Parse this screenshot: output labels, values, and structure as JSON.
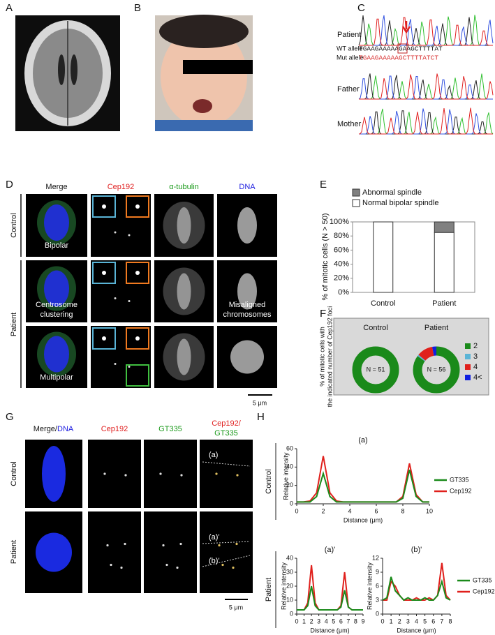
{
  "figure": {
    "panel_letters": [
      "A",
      "B",
      "C",
      "D",
      "E",
      "F",
      "G",
      "H"
    ]
  },
  "panel_c": {
    "patient": "Patient",
    "wt_allele_label": "WT allele",
    "wt_seq": "TGAAGAAAAAGAAGCTTTTAT",
    "mut_allele_label": "Mut allele",
    "mut_seq": "TGAAGAAAAAGCTTTTATCT",
    "father": "Father",
    "mother": "Mother"
  },
  "panel_d": {
    "columns": [
      "Merge",
      "Cep192",
      "α-tubulin",
      "DNA"
    ],
    "rows": [
      "Control",
      "Patient"
    ],
    "cell_labels": [
      "Bipolar",
      "Centrosome",
      "clustering",
      "Misaligned",
      "chromosomes",
      "Multipolar"
    ],
    "scale_bar": "5 μm"
  },
  "panel_g": {
    "columns": [
      "Merge/",
      "DNA",
      "Cep192",
      "GT335",
      "Cep192/",
      "GT335"
    ],
    "rows": [
      "Control",
      "Patient"
    ],
    "line_labels": [
      "(a)",
      "(a)'",
      "(b)'"
    ],
    "scale_bar": "5 μm"
  },
  "chart_data": [
    {
      "type": "bar",
      "stacked": true,
      "y_label": "% of mitotic cells (N > 50)",
      "categories": [
        "Control",
        "Patient"
      ],
      "series": [
        {
          "name": "Normal bipolar spindle",
          "color": "#ffffff",
          "values": [
            100,
            85
          ]
        },
        {
          "name": "Abnormal spindle",
          "color": "#808080",
          "values": [
            0,
            15
          ]
        }
      ],
      "ylim": [
        0,
        100
      ],
      "yticks": [
        {
          "value": 0,
          "label": "0%"
        },
        {
          "value": 20,
          "label": "20%"
        },
        {
          "value": 40,
          "label": "40%"
        },
        {
          "value": 60,
          "label": "60%"
        },
        {
          "value": 80,
          "label": "80%"
        },
        {
          "value": 100,
          "label": "100%"
        }
      ]
    },
    {
      "type": "donut",
      "y_label": [
        "% of mitotic cells with",
        "the indicated number of Cep192 foci"
      ],
      "categories": [
        "2",
        "3",
        "4",
        "4<"
      ],
      "colors": [
        "#1a8a1a",
        "#5ab4d6",
        "#e0201c",
        "#1020e0"
      ],
      "pies": [
        {
          "title": "Control",
          "center_label": "N = 51",
          "values": [
            100,
            0,
            0,
            0
          ]
        },
        {
          "title": "Patient",
          "center_label": "N = 56",
          "values": [
            85,
            1,
            11,
            3
          ]
        }
      ]
    },
    {
      "type": "line",
      "row_label": "Control",
      "title": "(a)",
      "x_label": "Distance (μm)",
      "y_label": "Relative intensity",
      "x": [
        0,
        0.5,
        1,
        1.5,
        2,
        2.5,
        3,
        3.5,
        4,
        4.5,
        5,
        5.5,
        6,
        6.5,
        7,
        7.5,
        8,
        8.5,
        9,
        9.5,
        10
      ],
      "series": [
        {
          "name": "GT335",
          "color": "#1a8a1a",
          "values": [
            2,
            2,
            2,
            8,
            33,
            8,
            2,
            2,
            2,
            2,
            2,
            2,
            2,
            2,
            2,
            2,
            6,
            37,
            8,
            2,
            2
          ]
        },
        {
          "name": "Cep192",
          "color": "#e0201c",
          "values": [
            2,
            2,
            3,
            12,
            52,
            12,
            3,
            2,
            2,
            2,
            2,
            2,
            2,
            2,
            2,
            2,
            8,
            44,
            10,
            2,
            2
          ]
        }
      ],
      "xlim": [
        0,
        10
      ],
      "ylim": [
        0,
        60
      ],
      "xticks": [
        0,
        2,
        4,
        6,
        8,
        10
      ],
      "yticks": [
        0,
        20,
        40,
        60
      ],
      "legend": true
    },
    {
      "type": "line",
      "row_label": "Patient",
      "title": "(a)'",
      "x_label": "Distance (μm)",
      "y_label": "Relative intensity",
      "x": [
        0,
        0.5,
        1,
        1.5,
        2,
        2.5,
        3,
        3.5,
        4,
        4.5,
        5,
        5.5,
        6,
        6.5,
        7,
        7.5,
        8,
        8.5,
        9
      ],
      "series": [
        {
          "name": "GT335",
          "color": "#1a8a1a",
          "values": [
            3,
            3,
            3,
            6,
            20,
            6,
            3,
            3,
            3,
            3,
            3,
            3,
            5,
            17,
            5,
            3,
            3,
            3,
            3
          ]
        },
        {
          "name": "Cep192",
          "color": "#e0201c",
          "values": [
            3,
            3,
            3,
            8,
            35,
            8,
            3,
            3,
            3,
            3,
            3,
            3,
            6,
            30,
            5,
            3,
            3,
            3,
            3
          ]
        }
      ],
      "xlim": [
        0,
        9
      ],
      "ylim": [
        0,
        40
      ],
      "xticks": [
        0,
        1,
        2,
        3,
        4,
        5,
        6,
        7,
        8,
        9
      ],
      "yticks": [
        0,
        10,
        20,
        30,
        40
      ],
      "legend": false
    },
    {
      "type": "line",
      "title": "(b)'",
      "x_label": "Distance (μm)",
      "y_label": "Relative intensity",
      "x": [
        0,
        0.5,
        1,
        1.5,
        2,
        2.5,
        3,
        3.5,
        4,
        4.5,
        5,
        5.5,
        6,
        6.5,
        7,
        7.5,
        8
      ],
      "series": [
        {
          "name": "GT335",
          "color": "#1a8a1a",
          "values": [
            3,
            3.5,
            8,
            5,
            4,
            3,
            3.5,
            3,
            3,
            3,
            3.5,
            3,
            3,
            4,
            7,
            3.5,
            3
          ]
        },
        {
          "name": "Cep192",
          "color": "#e0201c",
          "values": [
            3,
            3,
            7,
            6,
            4,
            3,
            3,
            3,
            3.5,
            3,
            3,
            3.5,
            3,
            4,
            11,
            4,
            3
          ]
        }
      ],
      "xlim": [
        0,
        8
      ],
      "ylim": [
        0,
        12
      ],
      "xticks": [
        0,
        1,
        2,
        3,
        4,
        5,
        6,
        7,
        8
      ],
      "yticks": [
        0,
        3,
        6,
        9,
        12
      ],
      "legend": true
    }
  ]
}
